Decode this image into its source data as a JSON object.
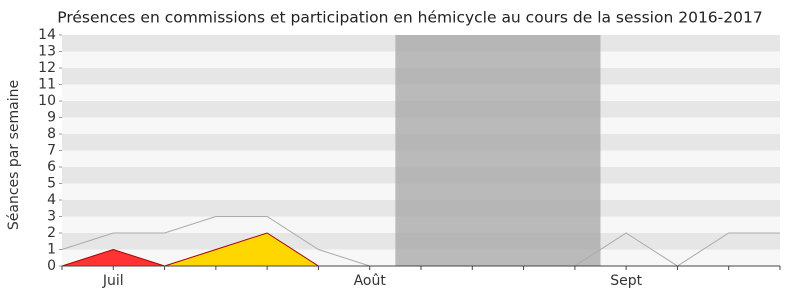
{
  "chart_data": {
    "type": "line",
    "title": "Présences en commissions et participation en hémicycle au cours de la session 2016-2017",
    "y_label": "Séances par semaine",
    "categories": [
      null,
      "Juil",
      null,
      null,
      null,
      null,
      "Août",
      null,
      null,
      null,
      null,
      "Sept",
      null,
      null,
      null
    ],
    "series": [
      {
        "color": "#aaaaaa",
        "style": "line",
        "values": [
          1,
          2,
          2,
          3,
          3,
          1,
          0,
          0,
          0,
          0,
          0,
          2,
          0,
          2,
          2
        ]
      },
      {
        "color": "#ffd700",
        "style": "area",
        "values": [
          0,
          0,
          0,
          1,
          2,
          0,
          0,
          0,
          0,
          0,
          0,
          0,
          0,
          0,
          0
        ]
      },
      {
        "color": "#ff3333",
        "style": "area",
        "values": [
          0,
          1,
          0,
          0,
          0,
          0,
          0,
          0,
          0,
          0,
          0,
          0,
          0,
          0,
          0
        ]
      }
    ],
    "highlight": {
      "from": 6.5,
      "to": 10.5,
      "color": "#aaaaaa"
    },
    "ylim": [
      0,
      14
    ],
    "yticks": [
      0,
      1,
      2,
      3,
      4,
      5,
      6,
      7,
      8,
      9,
      10,
      11,
      12,
      13,
      14
    ],
    "grid": true
  }
}
